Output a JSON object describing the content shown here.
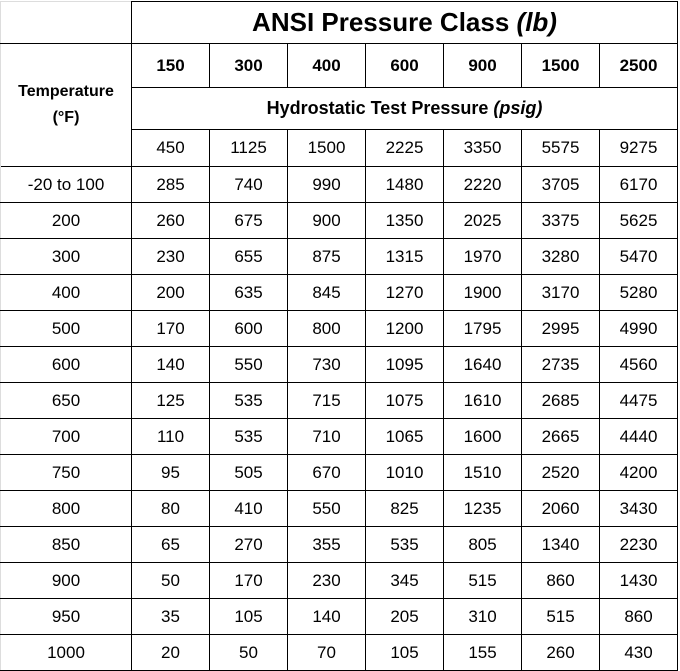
{
  "header": {
    "title": "ANSI Pressure Class",
    "title_unit": "(lb)",
    "classes": [
      "150",
      "300",
      "400",
      "600",
      "900",
      "1500",
      "2500"
    ],
    "subtitle": "Hydrostatic Test Pressure",
    "subtitle_unit": "(psig)",
    "temperature_label": "Temperature",
    "temperature_unit": "(°F)",
    "hydrostatic": [
      "450",
      "1125",
      "1500",
      "2225",
      "3350",
      "5575",
      "9275"
    ]
  },
  "table": {
    "rows": [
      [
        "-20 to 100",
        "285",
        "740",
        "990",
        "1480",
        "2220",
        "3705",
        "6170"
      ],
      [
        "200",
        "260",
        "675",
        "900",
        "1350",
        "2025",
        "3375",
        "5625"
      ],
      [
        "300",
        "230",
        "655",
        "875",
        "1315",
        "1970",
        "3280",
        "5470"
      ],
      [
        "400",
        "200",
        "635",
        "845",
        "1270",
        "1900",
        "3170",
        "5280"
      ],
      [
        "500",
        "170",
        "600",
        "800",
        "1200",
        "1795",
        "2995",
        "4990"
      ],
      [
        "600",
        "140",
        "550",
        "730",
        "1095",
        "1640",
        "2735",
        "4560"
      ],
      [
        "650",
        "125",
        "535",
        "715",
        "1075",
        "1610",
        "2685",
        "4475"
      ],
      [
        "700",
        "110",
        "535",
        "710",
        "1065",
        "1600",
        "2665",
        "4440"
      ],
      [
        "750",
        "95",
        "505",
        "670",
        "1010",
        "1510",
        "2520",
        "4200"
      ],
      [
        "800",
        "80",
        "410",
        "550",
        "825",
        "1235",
        "2060",
        "3430"
      ],
      [
        "850",
        "65",
        "270",
        "355",
        "535",
        "805",
        "1340",
        "2230"
      ],
      [
        "900",
        "50",
        "170",
        "230",
        "345",
        "515",
        "860",
        "1430"
      ],
      [
        "950",
        "35",
        "105",
        "140",
        "205",
        "310",
        "515",
        "860"
      ],
      [
        "1000",
        "20",
        "50",
        "70",
        "105",
        "155",
        "260",
        "430"
      ]
    ]
  }
}
